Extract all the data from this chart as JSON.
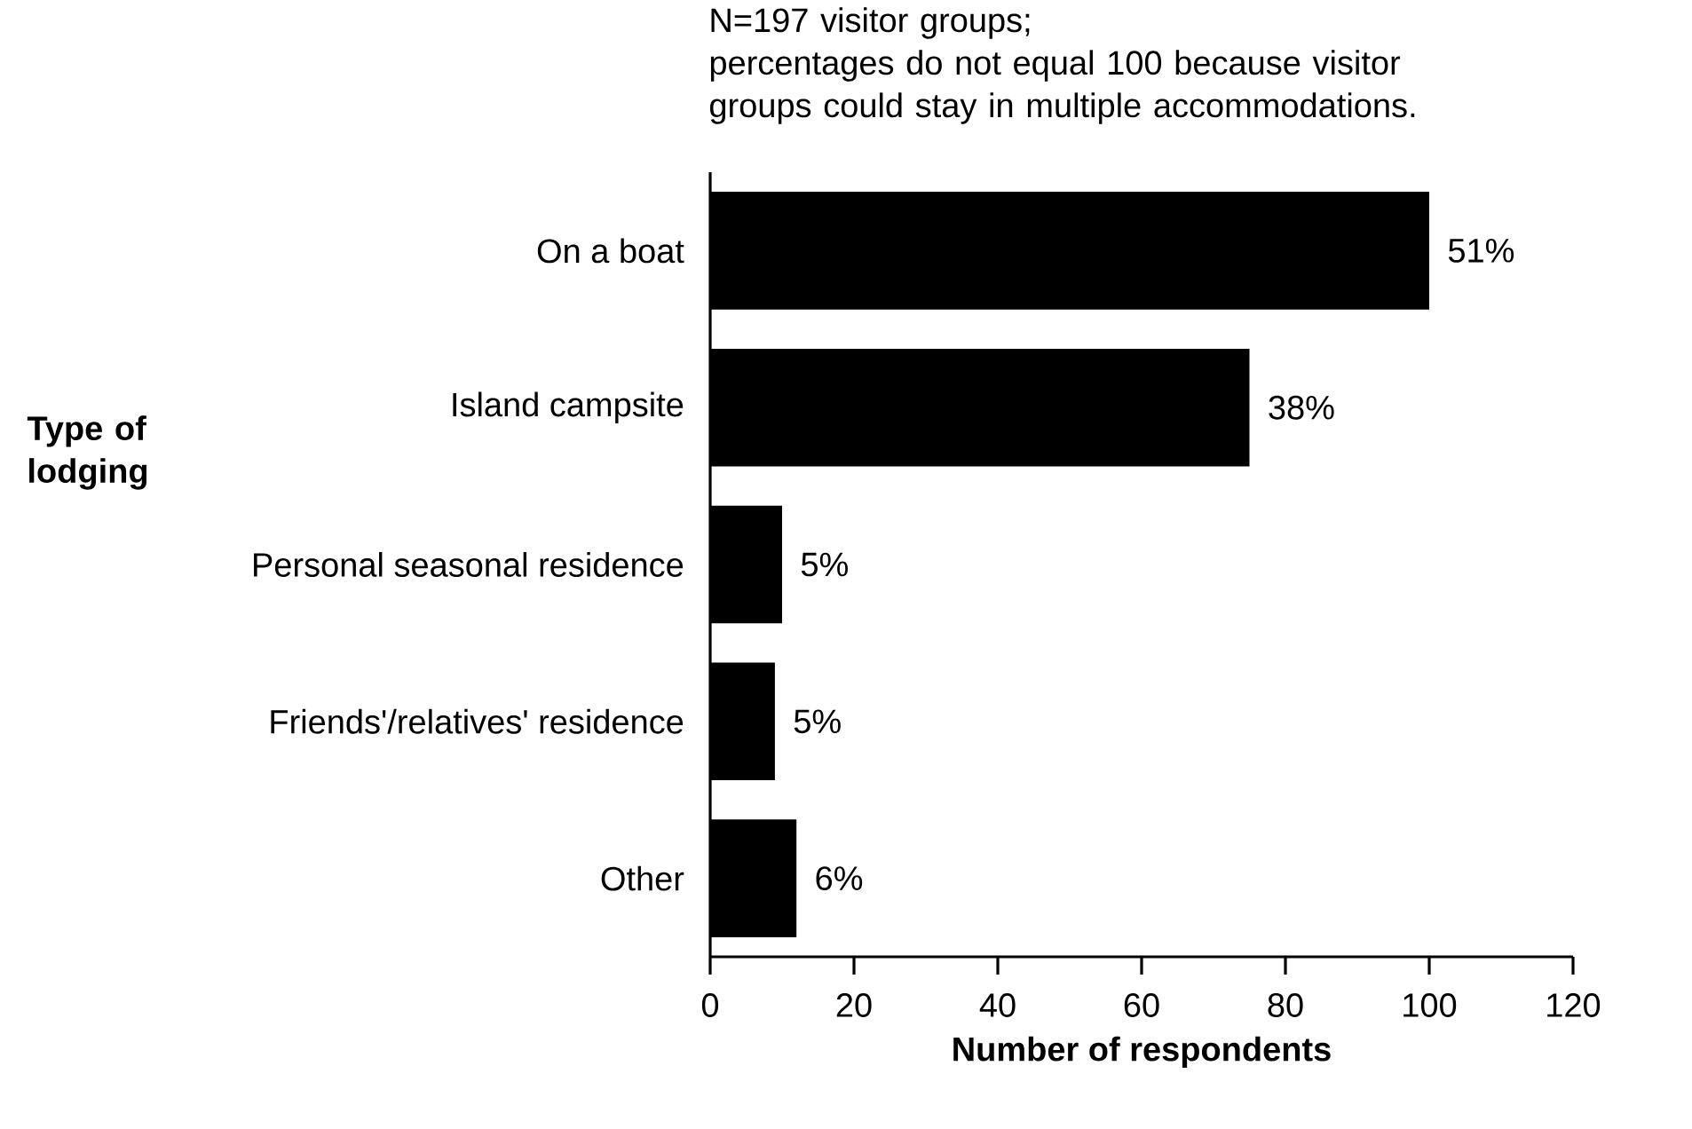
{
  "chart_data": {
    "type": "bar",
    "orientation": "horizontal",
    "ylabel": "Type of lodging",
    "xlabel": "Number of respondents",
    "annotations": [
      "N=197 visitor groups;",
      "percentages do not equal 100 because visitor groups could stay in multiple accommodations.",
      {
        "text": "51%",
        "x": 100,
        "y": "On a boat"
      },
      {
        "text": "38%",
        "x": 75,
        "y": "Island campsite"
      },
      {
        "text": "5%",
        "x": 10,
        "y": "Personal seasonal residence"
      },
      {
        "text": "5%",
        "x": 9,
        "y": "Friends'/relatives' residence"
      },
      {
        "text": "6%",
        "x": 12,
        "y": "Other"
      }
    ],
    "categories": [
      "On a boat",
      "Island campsite",
      "Personal seasonal residence",
      "Friends'/relatives' residence",
      "Other"
    ],
    "values": [
      100,
      75,
      10,
      9,
      12
    ],
    "color": "#000000",
    "xlim": [
      0,
      120
    ],
    "xticks": [
      0,
      20,
      40,
      60,
      80,
      100,
      120
    ],
    "grid": false
  }
}
